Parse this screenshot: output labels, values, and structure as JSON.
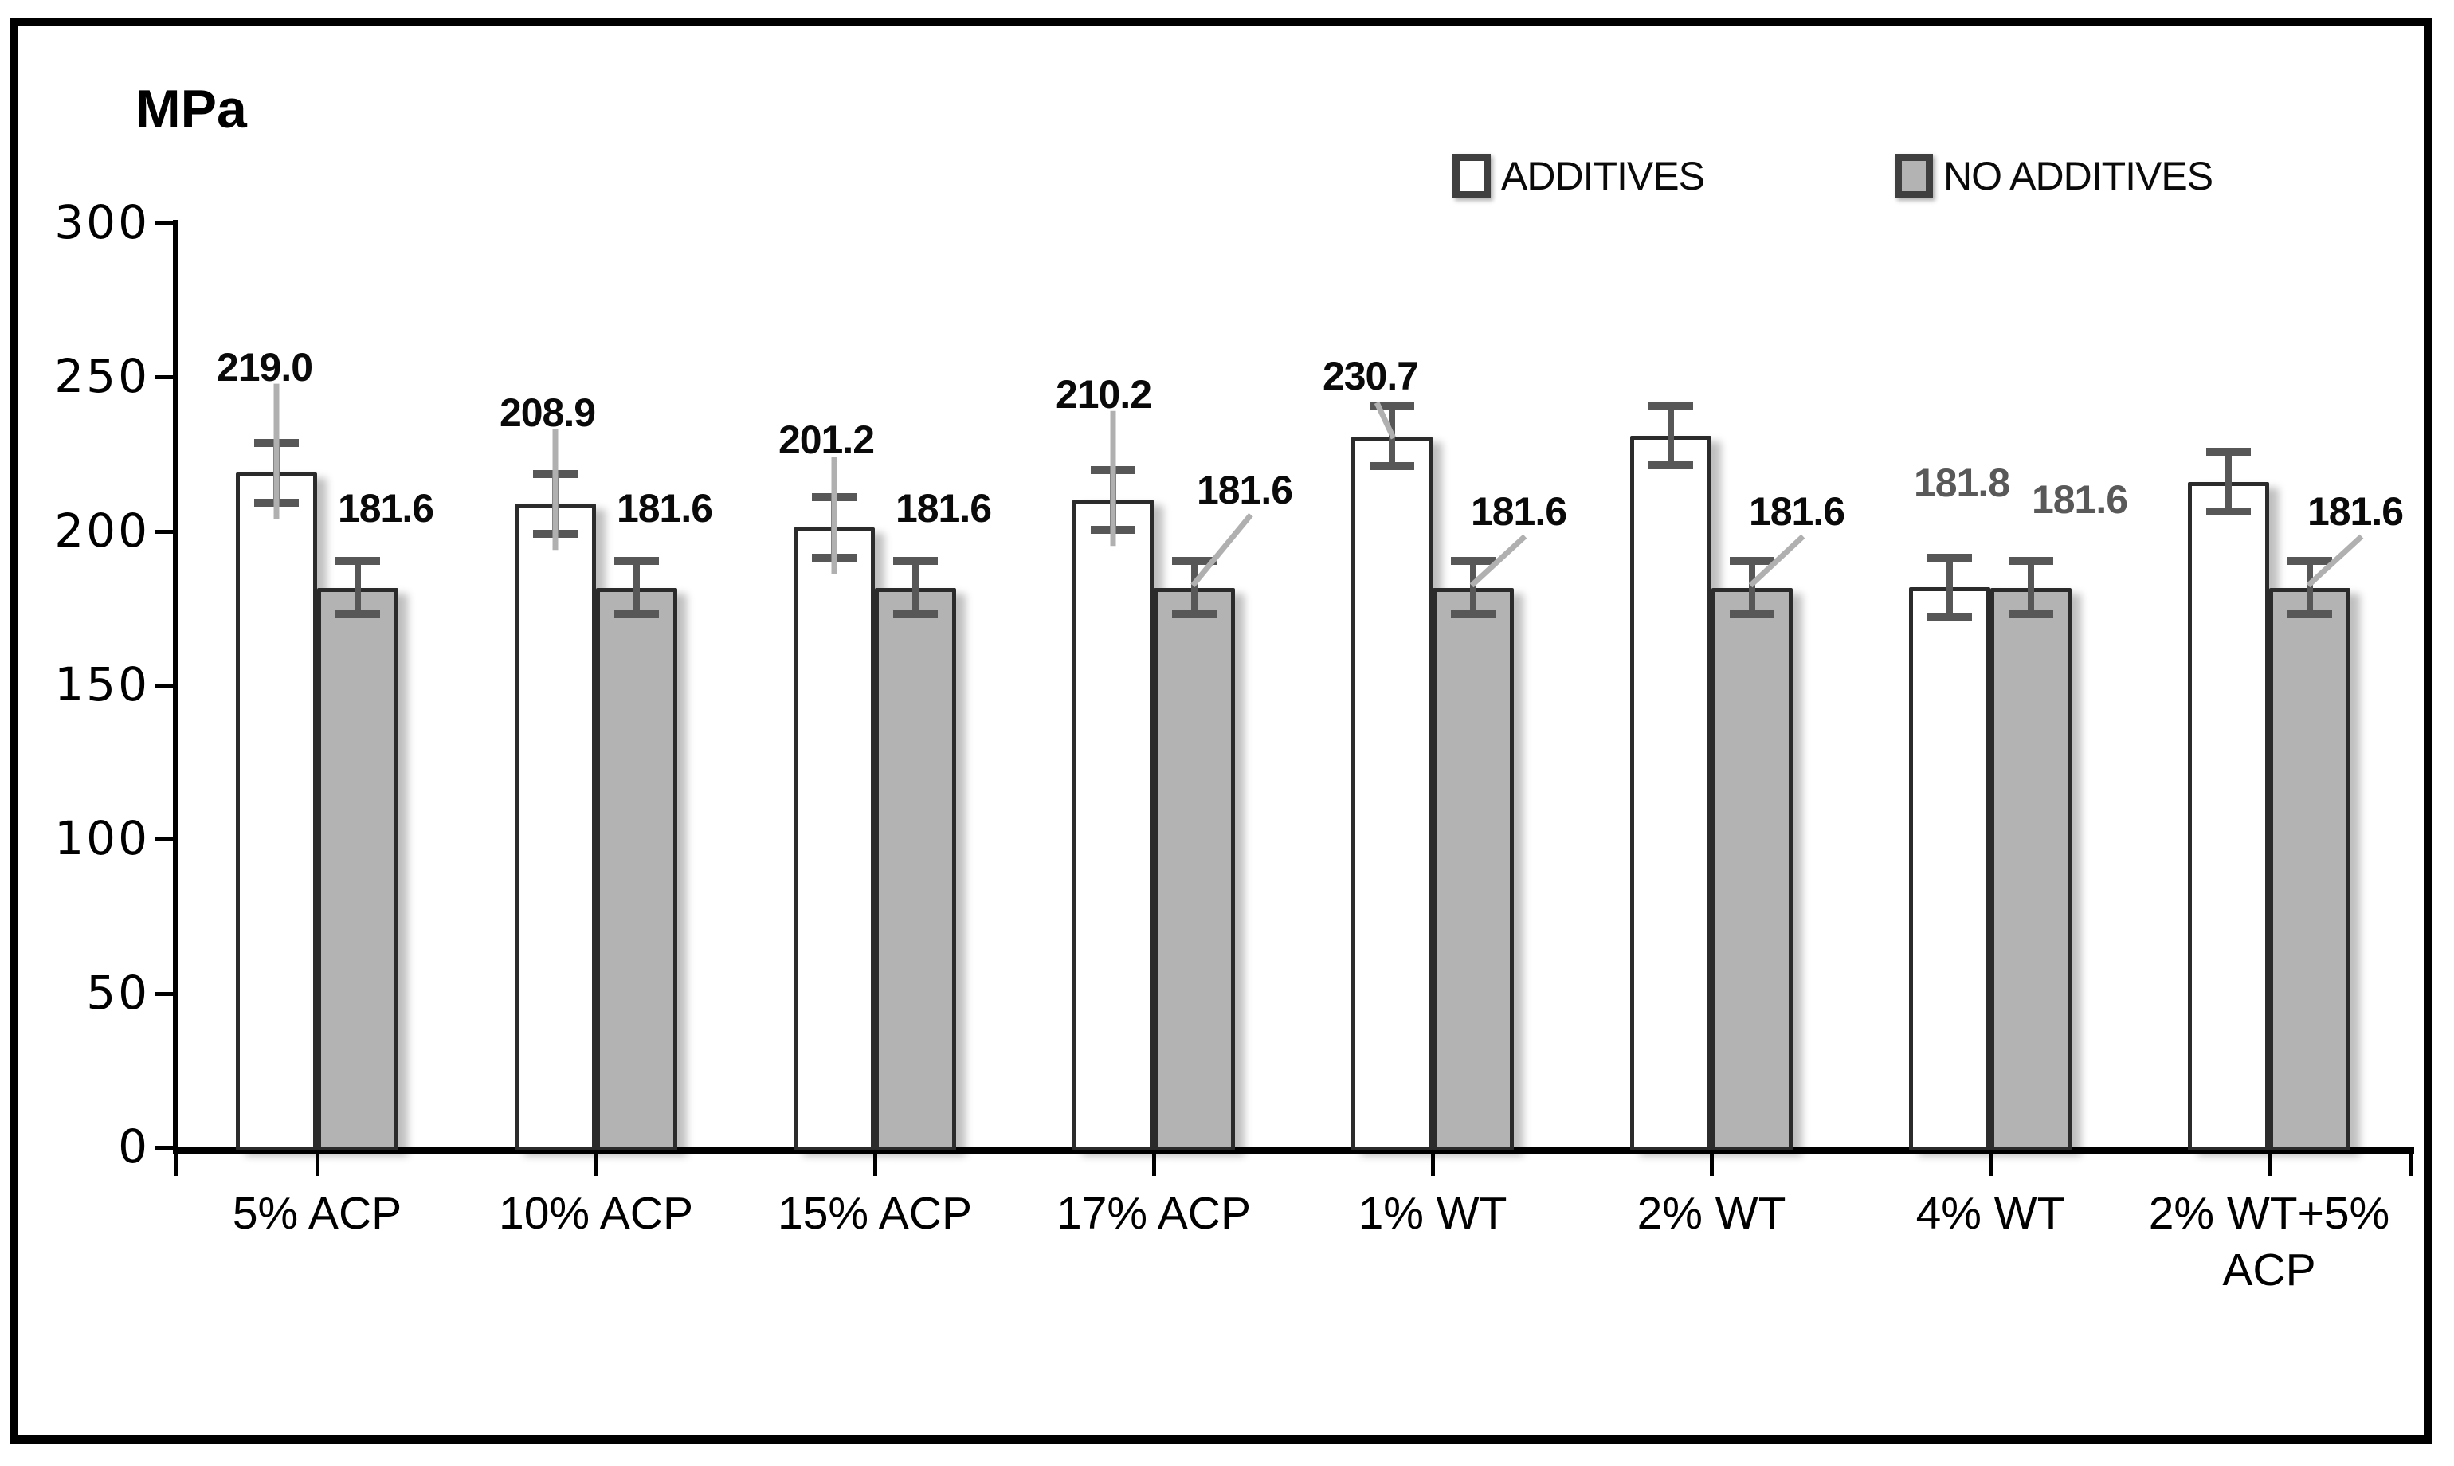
{
  "figure": {
    "unit_label": "MPa"
  },
  "legend": {
    "position": "top-center-right",
    "items": [
      {
        "label": "ADDITIVES",
        "fill": "#FFFFFF"
      },
      {
        "label": "NO ADDITIVES",
        "fill": "#B3B3B3"
      }
    ]
  },
  "colors": {
    "background": "#FFFFFF",
    "figure_border": "#000000",
    "bar_outline": "#2B2B2B",
    "additives_fill": "#FFFFFF",
    "no_additives_fill": "#B3B3B3",
    "error_bar": "#575757",
    "leader_line": "#B0B0B0",
    "data_label_black": "#0A0A0A",
    "data_label_gray": "#595959",
    "axis": "#000000"
  },
  "chart_data": {
    "type": "bar",
    "title": "",
    "xlabel": "",
    "ylabel": "MPa",
    "unit": "MPa",
    "ylim": [
      0,
      300
    ],
    "yticks": [
      0,
      50,
      100,
      150,
      200,
      250,
      300
    ],
    "grid": false,
    "legend_position": "top",
    "categories": [
      "5% ACP",
      "10% ACP",
      "15% ACP",
      "17% ACP",
      "1% WT",
      "2% WT",
      "4% WT",
      "2% WT+5% ACP"
    ],
    "xtick_display": [
      "5% ACP",
      "10% ACP",
      "15% ACP",
      "17% ACP",
      "1% WT",
      "2% WT",
      "4% WT",
      "2% WT+5%\nACP"
    ],
    "series": [
      {
        "name": "ADDITIVES",
        "fill": "#FFFFFF",
        "error": 11,
        "points": [
          {
            "value": 219.0,
            "label": "219.0",
            "label_color": "#0A0A0A",
            "dx": -15,
            "dy": 65,
            "leader": "vertical"
          },
          {
            "value": 208.9,
            "label": "208.9",
            "label_color": "#0A0A0A",
            "dx": -10,
            "dy": 47,
            "leader": "vertical"
          },
          {
            "value": 201.2,
            "label": "201.2",
            "label_color": "#0A0A0A",
            "dx": -10,
            "dy": 42,
            "leader": "vertical"
          },
          {
            "value": 210.2,
            "label": "210.2",
            "label_color": "#0A0A0A",
            "dx": -12,
            "dy": 65,
            "leader": "vertical"
          },
          {
            "value": 230.7,
            "label": "230.7",
            "label_color": "#0A0A0A",
            "dx": -27,
            "dy": 8,
            "leader": "diag-right"
          },
          {
            "value": 231.0,
            "label": "",
            "label_color": "#0A0A0A",
            "dx": 0,
            "dy": 0,
            "leader": "none"
          },
          {
            "value": 181.8,
            "label": "181.8",
            "label_color": "#595959",
            "dx": 15,
            "dy": 64,
            "leader": "none"
          },
          {
            "value": 216.0,
            "label": "",
            "label_color": "#0A0A0A",
            "dx": 0,
            "dy": 0,
            "leader": "none"
          }
        ]
      },
      {
        "name": "NO ADDITIVES",
        "fill": "#B3B3B3",
        "error": 10,
        "points": [
          {
            "value": 181.6,
            "label": "181.6",
            "label_color": "#0A0A0A",
            "dx": 35,
            "dy": 36,
            "leader": "none"
          },
          {
            "value": 181.6,
            "label": "181.6",
            "label_color": "#0A0A0A",
            "dx": 35,
            "dy": 36,
            "leader": "none"
          },
          {
            "value": 181.6,
            "label": "181.6",
            "label_color": "#0A0A0A",
            "dx": 35,
            "dy": 36,
            "leader": "none"
          },
          {
            "value": 181.6,
            "label": "181.6",
            "label_color": "#0A0A0A",
            "dx": 63,
            "dy": 59,
            "leader": "diag-left"
          },
          {
            "value": 181.6,
            "label": "181.6",
            "label_color": "#0A0A0A",
            "dx": 57,
            "dy": 32,
            "leader": "diag-left"
          },
          {
            "value": 181.6,
            "label": "181.6",
            "label_color": "#0A0A0A",
            "dx": 56,
            "dy": 32,
            "leader": "diag-left"
          },
          {
            "value": 181.6,
            "label": "181.6",
            "label_color": "#595959",
            "dx": 61,
            "dy": 47,
            "leader": "none"
          },
          {
            "value": 181.6,
            "label": "181.6",
            "label_color": "#0A0A0A",
            "dx": 57,
            "dy": 32,
            "leader": "diag-left"
          }
        ]
      }
    ]
  }
}
